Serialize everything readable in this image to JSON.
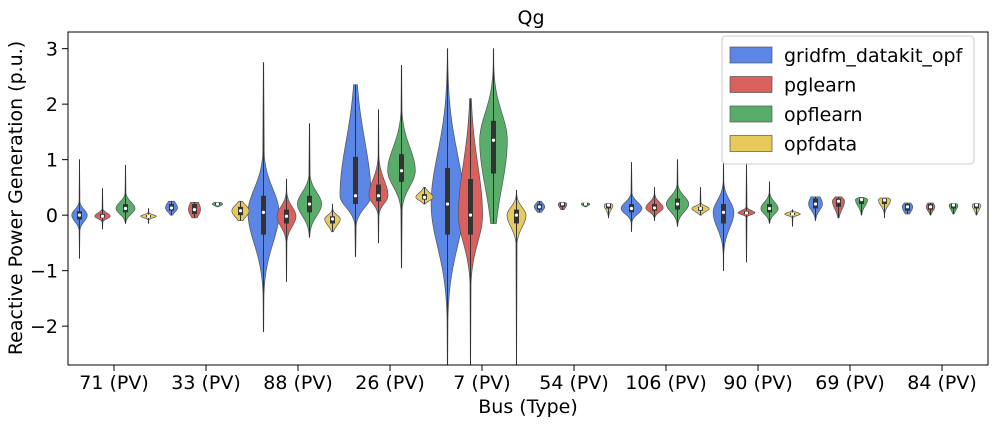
{
  "chart_data": {
    "type": "violin",
    "title": "Qg",
    "xlabel": "Bus (Type)",
    "ylabel": "Reactive Power Generation (p.u.)",
    "ylim": [
      -2.7,
      3.3
    ],
    "yticks": [
      3,
      2,
      1,
      0,
      -1,
      -2
    ],
    "ytick_labels": [
      "3",
      "2",
      "1",
      "0",
      "−1",
      "−2"
    ],
    "categories": [
      "71 (PV)",
      "33 (PV)",
      "88 (PV)",
      "26 (PV)",
      "7 (PV)",
      "54 (PV)",
      "106 (PV)",
      "90 (PV)",
      "69 (PV)",
      "84 (PV)"
    ],
    "legend_position": "top-right",
    "series": [
      {
        "name": "gridfm_datakit_opf",
        "color": "#5b86e5",
        "stats": [
          {
            "min": -0.78,
            "q1": -0.08,
            "median": 0.0,
            "q3": 0.07,
            "max": 1.0,
            "width": 0.45
          },
          {
            "min": 0.0,
            "q1": 0.08,
            "median": 0.13,
            "q3": 0.2,
            "max": 0.25,
            "width": 0.35
          },
          {
            "min": -2.1,
            "q1": -0.35,
            "median": 0.05,
            "q3": 0.35,
            "max": 2.75,
            "width": 0.9
          },
          {
            "min": -0.75,
            "q1": 0.2,
            "median": 0.35,
            "q3": 1.05,
            "max": 2.35,
            "width": 0.9
          },
          {
            "min": -2.7,
            "q1": -0.35,
            "median": 0.2,
            "q3": 0.85,
            "max": 3.0,
            "width": 0.95
          },
          {
            "min": 0.05,
            "q1": 0.1,
            "median": 0.15,
            "q3": 0.2,
            "max": 0.25,
            "width": 0.3
          },
          {
            "min": -0.3,
            "q1": 0.05,
            "median": 0.12,
            "q3": 0.2,
            "max": 0.95,
            "width": 0.6
          },
          {
            "min": -1.0,
            "q1": -0.15,
            "median": 0.05,
            "q3": 0.2,
            "max": 0.95,
            "width": 0.6
          },
          {
            "min": -0.1,
            "q1": 0.12,
            "median": 0.2,
            "q3": 0.3,
            "max": 0.33,
            "width": 0.4
          },
          {
            "min": 0.02,
            "q1": 0.08,
            "median": 0.15,
            "q3": 0.2,
            "max": 0.22,
            "width": 0.3
          }
        ]
      },
      {
        "name": "pglearn",
        "color": "#d9605c",
        "stats": [
          {
            "min": -0.25,
            "q1": -0.05,
            "median": -0.02,
            "q3": 0.02,
            "max": 0.48,
            "width": 0.45
          },
          {
            "min": -0.05,
            "q1": 0.02,
            "median": 0.1,
            "q3": 0.2,
            "max": 0.23,
            "width": 0.35
          },
          {
            "min": -1.2,
            "q1": -0.15,
            "median": -0.02,
            "q3": 0.1,
            "max": 0.65,
            "width": 0.55
          },
          {
            "min": -0.5,
            "q1": 0.25,
            "median": 0.35,
            "q3": 0.55,
            "max": 1.9,
            "width": 0.55
          },
          {
            "min": -2.7,
            "q1": -0.35,
            "median": 0.0,
            "q3": 0.65,
            "max": 2.1,
            "width": 0.7
          },
          {
            "min": 0.1,
            "q1": 0.15,
            "median": 0.2,
            "q3": 0.22,
            "max": 0.23,
            "width": 0.25
          },
          {
            "min": -0.1,
            "q1": 0.08,
            "median": 0.13,
            "q3": 0.2,
            "max": 0.5,
            "width": 0.5
          },
          {
            "min": -0.85,
            "q1": 0.02,
            "median": 0.04,
            "q3": 0.07,
            "max": 0.95,
            "width": 0.5
          },
          {
            "min": -0.05,
            "q1": 0.15,
            "median": 0.25,
            "q3": 0.3,
            "max": 0.33,
            "width": 0.35
          },
          {
            "min": 0.0,
            "q1": 0.1,
            "median": 0.15,
            "q3": 0.2,
            "max": 0.22,
            "width": 0.25
          }
        ]
      },
      {
        "name": "opflearn",
        "color": "#5aac6a",
        "stats": [
          {
            "min": -0.15,
            "q1": 0.05,
            "median": 0.12,
            "q3": 0.2,
            "max": 0.9,
            "width": 0.55
          },
          {
            "min": 0.15,
            "q1": 0.18,
            "median": 0.2,
            "q3": 0.22,
            "max": 0.23,
            "width": 0.3
          },
          {
            "min": -0.4,
            "q1": 0.05,
            "median": 0.2,
            "q3": 0.35,
            "max": 1.65,
            "width": 0.7
          },
          {
            "min": -0.95,
            "q1": 0.6,
            "median": 0.8,
            "q3": 1.1,
            "max": 2.7,
            "width": 0.8
          },
          {
            "min": -0.15,
            "q1": 0.75,
            "median": 1.35,
            "q3": 1.7,
            "max": 3.0,
            "width": 0.8
          },
          {
            "min": 0.15,
            "q1": 0.18,
            "median": 0.2,
            "q3": 0.21,
            "max": 0.22,
            "width": 0.25
          },
          {
            "min": -0.2,
            "q1": 0.1,
            "median": 0.2,
            "q3": 0.3,
            "max": 1.0,
            "width": 0.65
          },
          {
            "min": -0.15,
            "q1": 0.05,
            "median": 0.12,
            "q3": 0.2,
            "max": 0.6,
            "width": 0.5
          },
          {
            "min": 0.0,
            "q1": 0.2,
            "median": 0.28,
            "q3": 0.3,
            "max": 0.32,
            "width": 0.35
          },
          {
            "min": 0.02,
            "q1": 0.12,
            "median": 0.18,
            "q3": 0.2,
            "max": 0.21,
            "width": 0.25
          }
        ]
      },
      {
        "name": "opfdata",
        "color": "#e8c95c",
        "stats": [
          {
            "min": -0.15,
            "q1": -0.04,
            "median": -0.02,
            "q3": 0.0,
            "max": 0.12,
            "width": 0.45
          },
          {
            "min": -0.1,
            "q1": 0.0,
            "median": 0.08,
            "q3": 0.15,
            "max": 0.25,
            "width": 0.5
          },
          {
            "min": -0.3,
            "q1": -0.15,
            "median": -0.07,
            "q3": -0.02,
            "max": 0.2,
            "width": 0.45
          },
          {
            "min": 0.2,
            "q1": 0.28,
            "median": 0.32,
            "q3": 0.38,
            "max": 0.5,
            "width": 0.5
          },
          {
            "min": -2.7,
            "q1": -0.15,
            "median": 0.0,
            "q3": 0.1,
            "max": 0.45,
            "width": 0.55
          },
          {
            "min": -0.05,
            "q1": 0.12,
            "median": 0.18,
            "q3": 0.2,
            "max": 0.21,
            "width": 0.25
          },
          {
            "min": 0.0,
            "q1": 0.08,
            "median": 0.12,
            "q3": 0.15,
            "max": 0.5,
            "width": 0.5
          },
          {
            "min": -0.2,
            "q1": 0.0,
            "median": 0.02,
            "q3": 0.04,
            "max": 0.1,
            "width": 0.45
          },
          {
            "min": -0.05,
            "q1": 0.2,
            "median": 0.27,
            "q3": 0.3,
            "max": 0.31,
            "width": 0.35
          },
          {
            "min": 0.0,
            "q1": 0.12,
            "median": 0.18,
            "q3": 0.2,
            "max": 0.21,
            "width": 0.25
          }
        ]
      }
    ]
  }
}
